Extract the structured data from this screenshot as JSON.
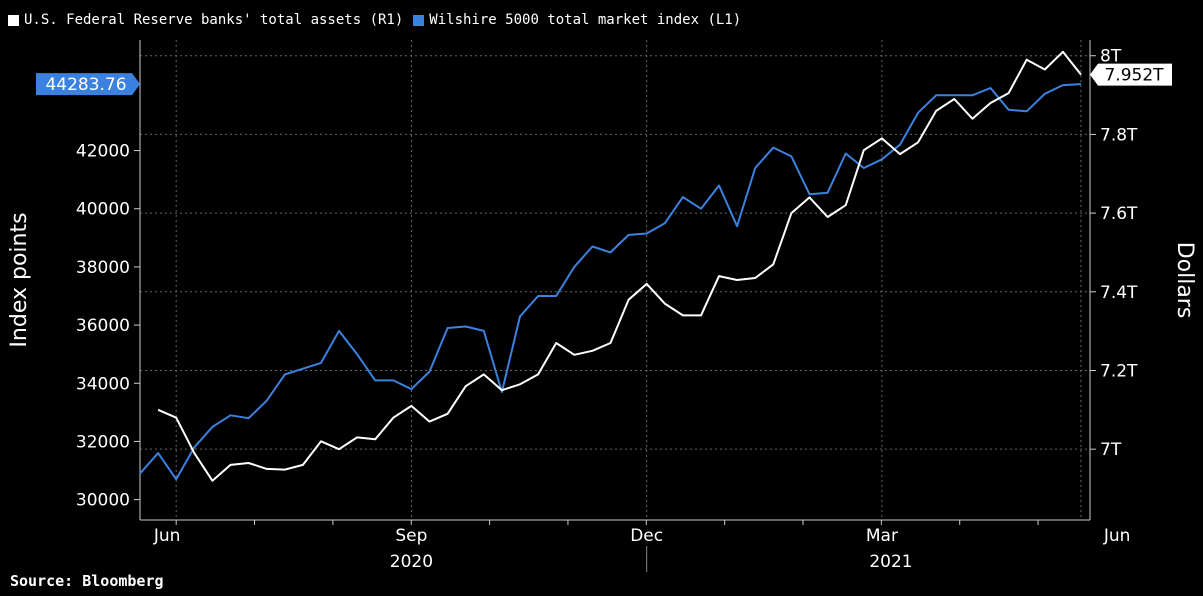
{
  "legend": {
    "items": [
      {
        "label": "U.S. Federal Reserve banks' total assets  (R1)",
        "color": "#ffffff"
      },
      {
        "label": "Wilshire 5000 total market index  (L1)",
        "color": "#3b82e0"
      }
    ]
  },
  "source": "Source: Bloomberg",
  "chart_data": {
    "type": "line",
    "left_axis": {
      "label": "Index points",
      "ticks": [
        30000,
        32000,
        34000,
        36000,
        38000,
        40000,
        42000
      ],
      "tick_labels": [
        "30000",
        "32000",
        "34000",
        "36000",
        "38000",
        "40000",
        "42000"
      ],
      "ylim": [
        29300,
        45800
      ]
    },
    "right_axis": {
      "label": "Dollars",
      "ticks": [
        7.0,
        7.2,
        7.4,
        7.6,
        7.8,
        8.0
      ],
      "tick_labels": [
        "7T",
        "7.2T",
        "7.4T",
        "7.6T",
        "7.8T",
        "8T"
      ],
      "ylim": [
        6.82,
        8.04
      ]
    },
    "x_axis": {
      "month_labels": [
        {
          "label": "Jun",
          "week": -0.5
        },
        {
          "label": "Sep",
          "week": 13
        },
        {
          "label": "Dec",
          "week": 26
        },
        {
          "label": "Mar",
          "week": 39
        },
        {
          "label": "Jun",
          "week": 52
        }
      ],
      "year_labels": [
        {
          "label": "2020",
          "week": 13
        },
        {
          "label": "2021",
          "week": 39.5
        }
      ],
      "xlim": [
        0,
        52.5
      ],
      "gridlines_at_weeks": [
        2,
        15,
        28,
        41,
        52
      ]
    },
    "series": [
      {
        "name": "Wilshire 5000 total market index",
        "axis": "left",
        "color": "#3b82e0",
        "last_value_label": "44283.76",
        "values": [
          30900,
          31600,
          30700,
          31800,
          32500,
          32900,
          32800,
          33400,
          34300,
          34500,
          34700,
          35800,
          35000,
          34100,
          34100,
          33800,
          34400,
          35900,
          35950,
          35800,
          33700,
          36300,
          37000,
          37000,
          38000,
          38700,
          38500,
          39100,
          39150,
          39500,
          40400,
          40000,
          40800,
          39400,
          41400,
          42100,
          41800,
          40500,
          40550,
          41900,
          41400,
          41700,
          42200,
          43300,
          43900,
          43900,
          43900,
          44150,
          43400,
          43350,
          43950,
          44250,
          44283.76
        ]
      },
      {
        "name": "U.S. Federal Reserve banks' total assets",
        "axis": "right",
        "color": "#ffffff",
        "last_value_label": "7.952T",
        "values": [
          null,
          7.1,
          7.08,
          6.99,
          6.92,
          6.96,
          6.965,
          6.95,
          6.948,
          6.96,
          7.02,
          7.0,
          7.03,
          7.025,
          7.08,
          7.11,
          7.07,
          7.09,
          7.16,
          7.19,
          7.15,
          7.165,
          7.19,
          7.27,
          7.24,
          7.25,
          7.27,
          7.38,
          7.42,
          7.37,
          7.34,
          7.34,
          7.44,
          7.43,
          7.435,
          7.47,
          7.6,
          7.64,
          7.59,
          7.62,
          7.76,
          7.79,
          7.75,
          7.78,
          7.86,
          7.89,
          7.84,
          7.88,
          7.905,
          7.99,
          7.965,
          8.01,
          7.952
        ]
      }
    ]
  }
}
